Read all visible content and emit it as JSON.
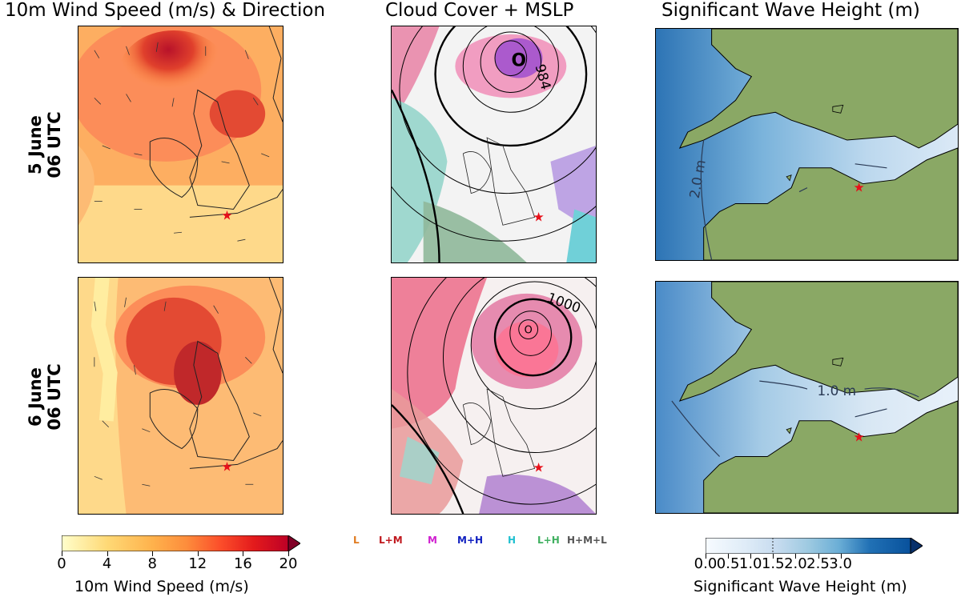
{
  "columns": {
    "wind_title": "10m Wind Speed (m/s) & Direction",
    "cloud_title": "Cloud Cover +  MSLP",
    "wave_title": "Significant Wave Height (m)"
  },
  "rows": [
    {
      "day": "5 June",
      "time": "06 UTC"
    },
    {
      "day": "6 June",
      "time": "06 UTC"
    }
  ],
  "pressure_labels": {
    "row1_low": "984",
    "row1_center": "O",
    "row2_isobar": "1000",
    "row2_center": "O"
  },
  "wave_contours": {
    "row1": "2.0 m",
    "row2": "1.0 m"
  },
  "wind_colorbar": {
    "label": "10m Wind Speed (m/s)",
    "ticks": [
      "0",
      "4",
      "8",
      "12",
      "16",
      "20"
    ],
    "range": [
      0,
      20
    ],
    "colors": [
      "#ffffcc",
      "#ffeda0",
      "#fed976",
      "#feb24c",
      "#fd8d3c",
      "#fc4e2a",
      "#e31a1c",
      "#bd0026",
      "#800026"
    ]
  },
  "cloud_legend": [
    {
      "label": "L",
      "color": "#e07b20"
    },
    {
      "label": "L+M",
      "color": "#c0181e"
    },
    {
      "label": "M",
      "color": "#d020d0"
    },
    {
      "label": "M+H",
      "color": "#1020c0"
    },
    {
      "label": "H",
      "color": "#20c0d0"
    },
    {
      "label": "L+H",
      "color": "#40b060"
    },
    {
      "label": "H+M+L",
      "color": "#555555"
    }
  ],
  "wave_colorbar": {
    "label": "Significant Wave Height (m)",
    "ticks": [
      "0.0",
      "0.5",
      "1.0",
      "1.5",
      "2.0",
      "2.5",
      "3.0"
    ],
    "range": [
      0.0,
      3.0
    ],
    "colors": [
      "#f7fbff",
      "#deebf7",
      "#c6dbef",
      "#9ecae1",
      "#6baed6",
      "#4292c6",
      "#2171b5",
      "#08519c",
      "#08306b"
    ]
  },
  "colors": {
    "land": "#8aa865",
    "star": "#e8101a",
    "contour": "#000000"
  }
}
